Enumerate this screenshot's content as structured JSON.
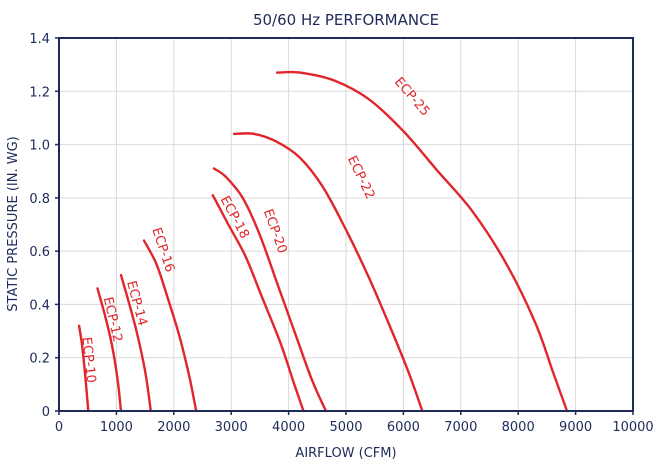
{
  "chart_data": {
    "type": "line",
    "title": "50/60 Hz PERFORMANCE",
    "xlabel": "AIRFLOW (CFM)",
    "ylabel": "STATIC PRESSURE (IN. WG)",
    "xlim": [
      0,
      10000
    ],
    "ylim": [
      0,
      1.4
    ],
    "grid": true,
    "x_ticks": [
      "0",
      "1000",
      "2000",
      "3000",
      "4000",
      "5000",
      "6000",
      "7000",
      "8000",
      "9000",
      "10000"
    ],
    "y_ticks": [
      "0",
      "0.2",
      "0.4",
      "0.6",
      "0.8",
      "1.0",
      "1.2",
      "1.4"
    ],
    "series": [
      {
        "name": "ECP-10",
        "points": [
          [
            350,
            0.32
          ],
          [
            400,
            0.25
          ],
          [
            450,
            0.15
          ],
          [
            510,
            0.0
          ]
        ]
      },
      {
        "name": "ECP-12",
        "points": [
          [
            670,
            0.46
          ],
          [
            800,
            0.36
          ],
          [
            920,
            0.25
          ],
          [
            1020,
            0.12
          ],
          [
            1080,
            0.0
          ]
        ]
      },
      {
        "name": "ECP-14",
        "points": [
          [
            1080,
            0.51
          ],
          [
            1200,
            0.42
          ],
          [
            1350,
            0.3
          ],
          [
            1500,
            0.15
          ],
          [
            1600,
            0.0
          ]
        ]
      },
      {
        "name": "ECP-16",
        "points": [
          [
            1480,
            0.64
          ],
          [
            1700,
            0.55
          ],
          [
            1900,
            0.42
          ],
          [
            2100,
            0.28
          ],
          [
            2280,
            0.12
          ],
          [
            2390,
            0.0
          ]
        ]
      },
      {
        "name": "ECP-18",
        "points": [
          [
            2680,
            0.81
          ],
          [
            2950,
            0.7
          ],
          [
            3250,
            0.58
          ],
          [
            3550,
            0.42
          ],
          [
            3850,
            0.26
          ],
          [
            4100,
            0.1
          ],
          [
            4260,
            0.0
          ]
        ]
      },
      {
        "name": "ECP-20",
        "points": [
          [
            2700,
            0.91
          ],
          [
            2900,
            0.88
          ],
          [
            3200,
            0.8
          ],
          [
            3500,
            0.66
          ],
          [
            3800,
            0.48
          ],
          [
            4100,
            0.3
          ],
          [
            4400,
            0.12
          ],
          [
            4650,
            0.0
          ]
        ]
      },
      {
        "name": "ECP-22",
        "points": [
          [
            3050,
            1.04
          ],
          [
            3400,
            1.04
          ],
          [
            3800,
            1.01
          ],
          [
            4200,
            0.95
          ],
          [
            4600,
            0.84
          ],
          [
            5000,
            0.68
          ],
          [
            5400,
            0.5
          ],
          [
            5800,
            0.3
          ],
          [
            6100,
            0.14
          ],
          [
            6330,
            0.0
          ]
        ]
      },
      {
        "name": "ECP-25",
        "points": [
          [
            3800,
            1.27
          ],
          [
            4200,
            1.27
          ],
          [
            4800,
            1.24
          ],
          [
            5400,
            1.17
          ],
          [
            6000,
            1.05
          ],
          [
            6600,
            0.9
          ],
          [
            7200,
            0.75
          ],
          [
            7800,
            0.55
          ],
          [
            8300,
            0.33
          ],
          [
            8600,
            0.15
          ],
          [
            8850,
            0.0
          ]
        ]
      }
    ],
    "labels": [
      {
        "text": "ECP-10",
        "x": 450,
        "y": 0.19
      },
      {
        "text": "ECP-12",
        "x": 870,
        "y": 0.34
      },
      {
        "text": "ECP-14",
        "x": 1290,
        "y": 0.4
      },
      {
        "text": "ECP-16",
        "x": 1750,
        "y": 0.6
      },
      {
        "text": "ECP-18",
        "x": 3000,
        "y": 0.72
      },
      {
        "text": "ECP-20",
        "x": 3700,
        "y": 0.67
      },
      {
        "text": "ECP-22",
        "x": 5200,
        "y": 0.87
      },
      {
        "text": "ECP-25",
        "x": 6100,
        "y": 1.17
      }
    ],
    "colors": {
      "curve": "#e0262b",
      "axis": "#1e2a5a",
      "grid": "#d9d9d9"
    }
  }
}
